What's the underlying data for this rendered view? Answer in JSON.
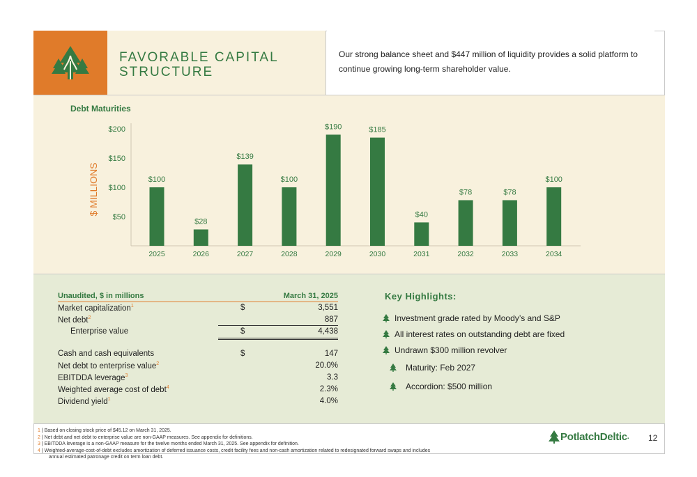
{
  "header": {
    "title": "FAVORABLE CAPITAL\nSTRUCTURE",
    "intro": "Our strong balance sheet and $447 million of liquidity provides a solid platform to continue growing long-term shareholder value."
  },
  "chart_data": {
    "type": "bar",
    "title": "Debt Maturities",
    "ylabel": "$ MILLIONS",
    "xlabel": "",
    "categories": [
      "2025",
      "2026",
      "2027",
      "2028",
      "2029",
      "2030",
      "2031",
      "2032",
      "2033",
      "2034"
    ],
    "values": [
      100,
      28,
      139,
      100,
      190,
      185,
      40,
      78,
      78,
      100
    ],
    "data_labels": [
      "$100",
      "$28",
      "$139",
      "$100",
      "$190",
      "$185",
      "$40",
      "$78",
      "$78",
      "$100"
    ],
    "yticks": [
      50,
      100,
      150,
      200
    ],
    "ytick_labels": [
      "$50",
      "$100",
      "$150",
      "$200"
    ],
    "ylim": [
      0,
      210
    ],
    "grid": false,
    "bar_color": "#357a42"
  },
  "table": {
    "header_left": "Unaudited, $ in millions",
    "header_right": "March 31, 2025",
    "rows": [
      {
        "label": "Market capitalization",
        "sup": "1",
        "dollar": "$",
        "value": "3,551"
      },
      {
        "label": "Net debt",
        "sup": "2",
        "dollar": "",
        "value": "887"
      },
      {
        "label": "Enterprise value",
        "sup": "",
        "dollar": "$",
        "value": "4,438"
      },
      {
        "label": "Cash and cash equivalents",
        "sup": "",
        "dollar": "$",
        "value": "147"
      },
      {
        "label": "Net debt to enterprise value",
        "sup": "2",
        "dollar": "",
        "value": "20.0%"
      },
      {
        "label": "EBITDDA leverage",
        "sup": "3",
        "dollar": "",
        "value": "3.3"
      },
      {
        "label": "Weighted average cost of debt",
        "sup": "4",
        "dollar": "",
        "value": "2.3%"
      },
      {
        "label": "Dividend yield",
        "sup": "1",
        "dollar": "",
        "value": "4.0%"
      }
    ]
  },
  "highlights": {
    "title": "Key Highlights:",
    "items": [
      "Investment grade rated by Moody’s and S&P",
      "All interest rates on outstanding debt are fixed",
      "Undrawn $300 million revolver"
    ],
    "subitems": [
      "Maturity: Feb 2027",
      "Accordion: $500 million"
    ]
  },
  "footnotes": [
    {
      "num": "1",
      "text": " | Based on closing stock price of $45.12 on March 31, 2025."
    },
    {
      "num": "2",
      "text": " | Net debt and net debt to enterprise value are non-GAAP measures. See appendix for definitions."
    },
    {
      "num": "3",
      "text": " | EBITDDA leverage is a non-GAAP measure for the twelve months ended March 31, 2025. See appendix for definition."
    },
    {
      "num": "4",
      "text": " | Weighted-average-cost-of-debt excludes amortization of deferred issuance costs, credit facility fees and non-cash amortization related to redesignated forward swaps and includes"
    },
    {
      "num": "",
      "text": "annual estimated patronage credit on term loan debt."
    }
  ],
  "brand": {
    "name": "PotlatchDeltic",
    "mark": "."
  },
  "page_number": "12",
  "colors": {
    "green": "#357a42",
    "orange": "#e07b2a",
    "cream": "#f8f1dd",
    "sage": "#e6ebd6"
  }
}
